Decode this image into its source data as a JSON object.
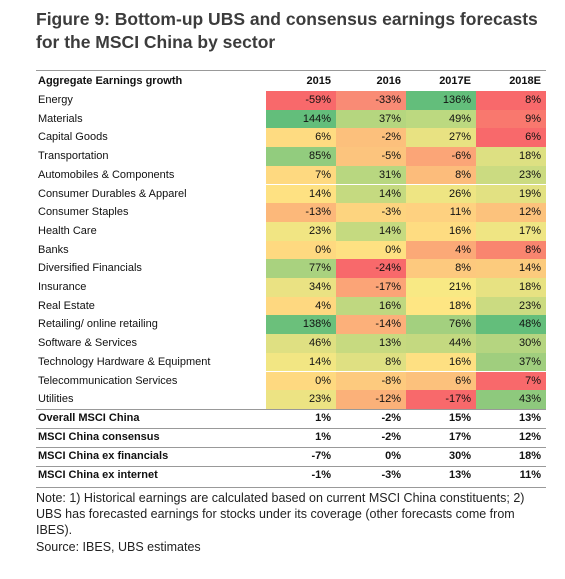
{
  "title": "Figure 9: Bottom-up UBS and consensus earnings forecasts for the MSCI China by sector",
  "table": {
    "header": [
      "Aggregate Earnings growth",
      "2015",
      "2016",
      "2017E",
      "2018E"
    ],
    "rows": [
      {
        "label": "Energy",
        "cells": [
          "-59%",
          "-33%",
          "136%",
          "8%"
        ],
        "colors": [
          "#f8696b",
          "#f98b75",
          "#63be7b",
          "#f8696b"
        ]
      },
      {
        "label": "Materials",
        "cells": [
          "144%",
          "37%",
          "49%",
          "9%"
        ],
        "colors": [
          "#63be7b",
          "#b5d67f",
          "#bcd980",
          "#f9786e"
        ]
      },
      {
        "label": "Capital Goods",
        "cells": [
          "6%",
          "-2%",
          "27%",
          "6%"
        ],
        "colors": [
          "#fedb81",
          "#fcc07c",
          "#e8e282",
          "#f8696b"
        ]
      },
      {
        "label": "Transportation",
        "cells": [
          "85%",
          "-5%",
          "-6%",
          "18%"
        ],
        "colors": [
          "#92cc7e",
          "#fcc47d",
          "#fba577",
          "#dde082"
        ]
      },
      {
        "label": "Automobiles & Components",
        "cells": [
          "7%",
          "31%",
          "8%",
          "23%"
        ],
        "colors": [
          "#fed980",
          "#b8d780",
          "#fcbc7b",
          "#cbdb81"
        ]
      },
      {
        "label": "Consumer Durables & Apparel",
        "cells": [
          "14%",
          "14%",
          "26%",
          "19%"
        ],
        "colors": [
          "#fee182",
          "#c5da80",
          "#eee583",
          "#e2e182"
        ]
      },
      {
        "label": "Consumer Staples",
        "cells": [
          "-13%",
          "-3%",
          "11%",
          "12%"
        ],
        "colors": [
          "#fcb87a",
          "#fdd47f",
          "#fed180",
          "#fcc27c"
        ]
      },
      {
        "label": "Health Care",
        "cells": [
          "23%",
          "14%",
          "16%",
          "17%"
        ],
        "colors": [
          "#f1e583",
          "#c5da80",
          "#fedc81",
          "#efe583"
        ]
      },
      {
        "label": "Banks",
        "cells": [
          "0%",
          "0%",
          "4%",
          "8%"
        ],
        "colors": [
          "#fed980",
          "#fee182",
          "#fba977",
          "#f9856f"
        ]
      },
      {
        "label": "Diversified Financials",
        "cells": [
          "77%",
          "-24%",
          "8%",
          "14%"
        ],
        "colors": [
          "#a9d27f",
          "#f8696b",
          "#fdc97e",
          "#fccb7d"
        ]
      },
      {
        "label": "Insurance",
        "cells": [
          "34%",
          "-17%",
          "21%",
          "18%"
        ],
        "colors": [
          "#eae283",
          "#fba477",
          "#f8e984",
          "#e7e282"
        ]
      },
      {
        "label": "Real Estate",
        "cells": [
          "4%",
          "16%",
          "18%",
          "23%"
        ],
        "colors": [
          "#fed880",
          "#bfd880",
          "#fee683",
          "#cbdb81"
        ]
      },
      {
        "label": "Retailing/ online retailing",
        "cells": [
          "138%",
          "-14%",
          "76%",
          "48%"
        ],
        "colors": [
          "#6bc07b",
          "#fcb07a",
          "#a3d07f",
          "#63be7b"
        ]
      },
      {
        "label": "Software & Services",
        "cells": [
          "46%",
          "13%",
          "44%",
          "30%"
        ],
        "colors": [
          "#dfe082",
          "#c7da80",
          "#c4d980",
          "#b5d580"
        ]
      },
      {
        "label": "Technology Hardware & Equipment",
        "cells": [
          "14%",
          "8%",
          "16%",
          "37%"
        ],
        "colors": [
          "#f2e683",
          "#dfe082",
          "#fee082",
          "#a0ce7e"
        ]
      },
      {
        "label": "Telecommunication Services",
        "cells": [
          "0%",
          "-8%",
          "6%",
          "7%"
        ],
        "colors": [
          "#fed980",
          "#fdca7e",
          "#fcc17c",
          "#f8696b"
        ]
      },
      {
        "label": "Utilities",
        "cells": [
          "23%",
          "-12%",
          "-17%",
          "43%"
        ],
        "colors": [
          "#ece383",
          "#fbb179",
          "#f8696b",
          "#8ec97d"
        ]
      }
    ],
    "summary_rows": [
      {
        "label": "Overall MSCI China",
        "cells": [
          "1%",
          "-2%",
          "15%",
          "13%"
        ]
      },
      {
        "label": "MSCI China consensus",
        "cells": [
          "1%",
          "-2%",
          "17%",
          "12%"
        ]
      },
      {
        "label": "MSCI China ex financials",
        "cells": [
          "-7%",
          "0%",
          "30%",
          "18%"
        ]
      },
      {
        "label": "MSCI China ex internet",
        "cells": [
          "-1%",
          "-3%",
          "13%",
          "11%"
        ]
      }
    ]
  },
  "note": "Note: 1) Historical earnings are calculated based on current MSCI China constituents; 2) UBS has forecasted earnings for stocks under its coverage (other forecasts come from IBES).",
  "source": "Source:  IBES, UBS estimates"
}
